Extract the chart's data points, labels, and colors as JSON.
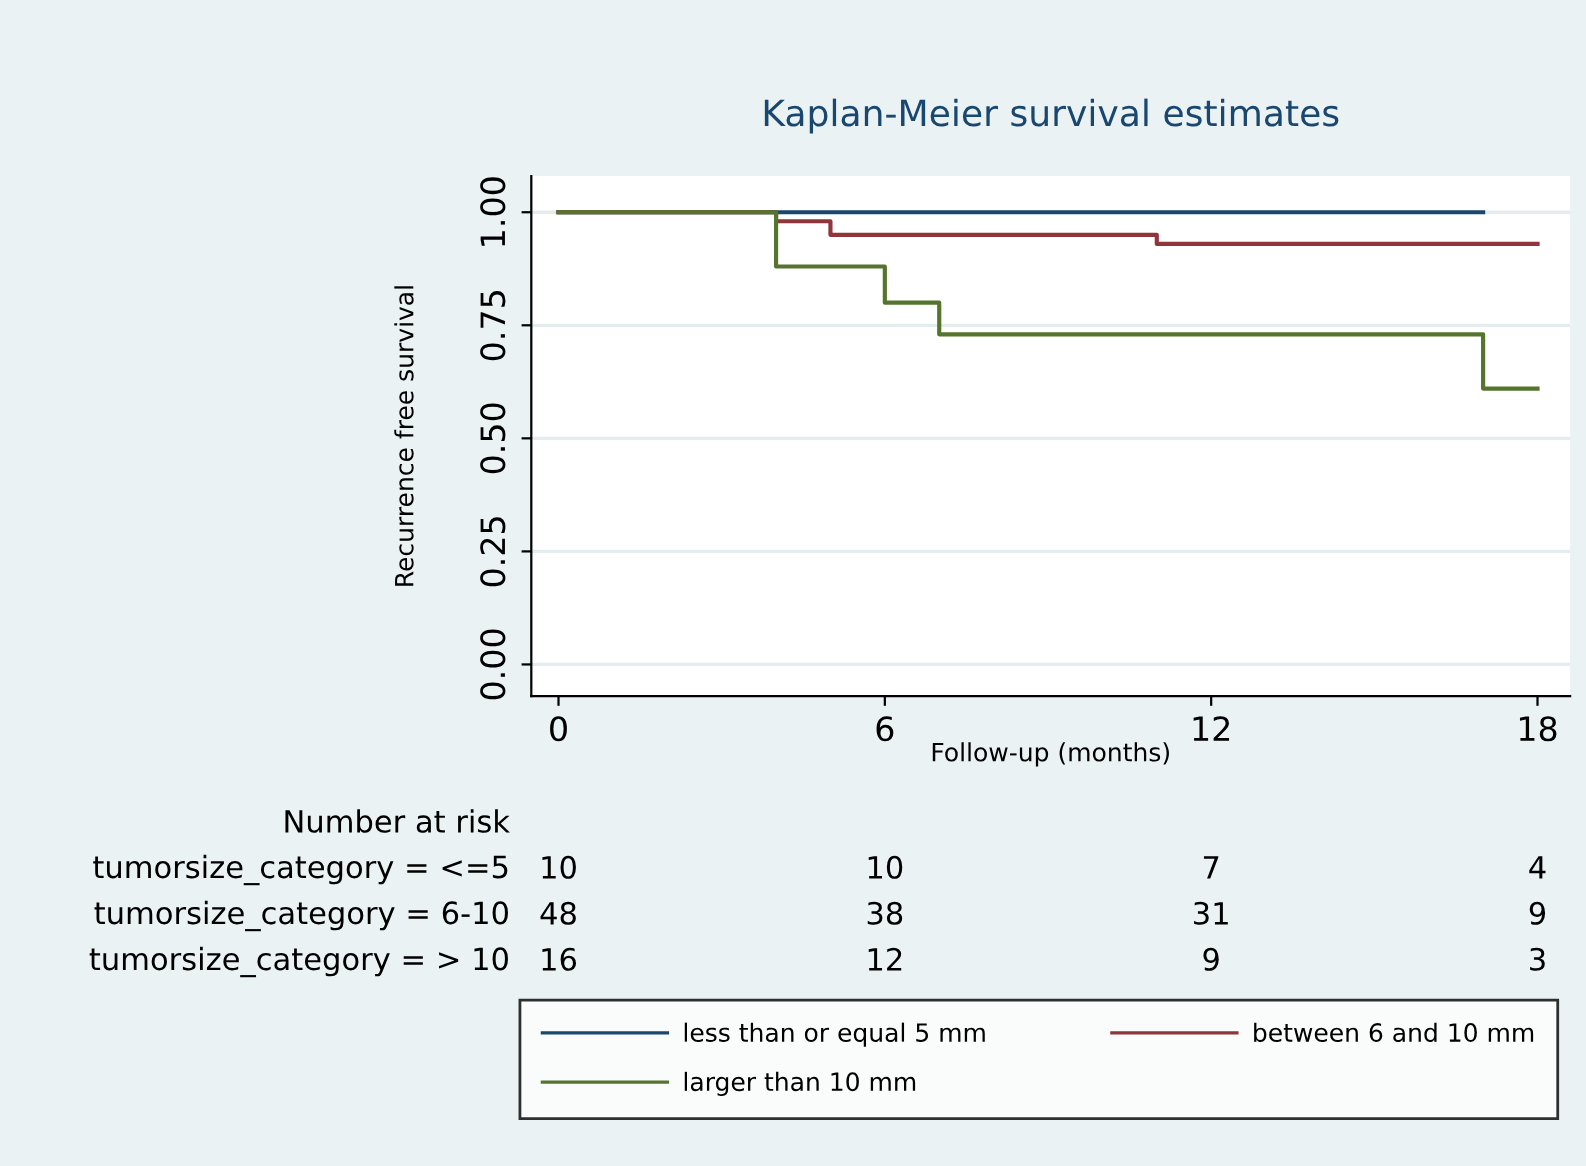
{
  "chart_data": {
    "type": "step",
    "title": "Kaplan-Meier survival estimates",
    "xlabel": "Follow-up (months)",
    "ylabel": "Recurrence free survival",
    "series": [
      {
        "name": "less than or equal 5 mm",
        "color": "#1a476f",
        "x": [
          0,
          17
        ],
        "values": [
          1.0,
          1.0
        ]
      },
      {
        "name": "between 6 and 10 mm",
        "color": "#90353b",
        "x": [
          0,
          4,
          5,
          11,
          18
        ],
        "values": [
          1.0,
          0.98,
          0.95,
          0.93,
          0.93
        ]
      },
      {
        "name": "larger than 10 mm",
        "color": "#55752f",
        "x": [
          0,
          4,
          6,
          7,
          17,
          18
        ],
        "values": [
          1.0,
          0.88,
          0.8,
          0.73,
          0.61,
          0.61
        ]
      }
    ],
    "xlim": [
      -0.5,
      18.6
    ],
    "xticks": [
      0,
      6,
      12,
      18
    ],
    "ylim": [
      -0.07,
      1.08
    ],
    "yticks": [
      {
        "value": 0,
        "label": "0.00"
      },
      {
        "value": 0.25,
        "label": "0.25"
      },
      {
        "value": 0.5,
        "label": "0.50"
      },
      {
        "value": 0.75,
        "label": "0.75"
      },
      {
        "value": 1,
        "label": "1.00"
      }
    ],
    "grid": "y",
    "legend": "bottom",
    "line_style": "solid",
    "marker": "none",
    "annotations": [
      "Number at risk",
      "tumorsize_category = <=5",
      "10",
      "10",
      "7",
      "4",
      "tumorsize_category = 6-10",
      "48",
      "38",
      "31",
      "9",
      "tumorsize_category = > 10",
      "16",
      "12",
      "9",
      "3"
    ]
  }
}
